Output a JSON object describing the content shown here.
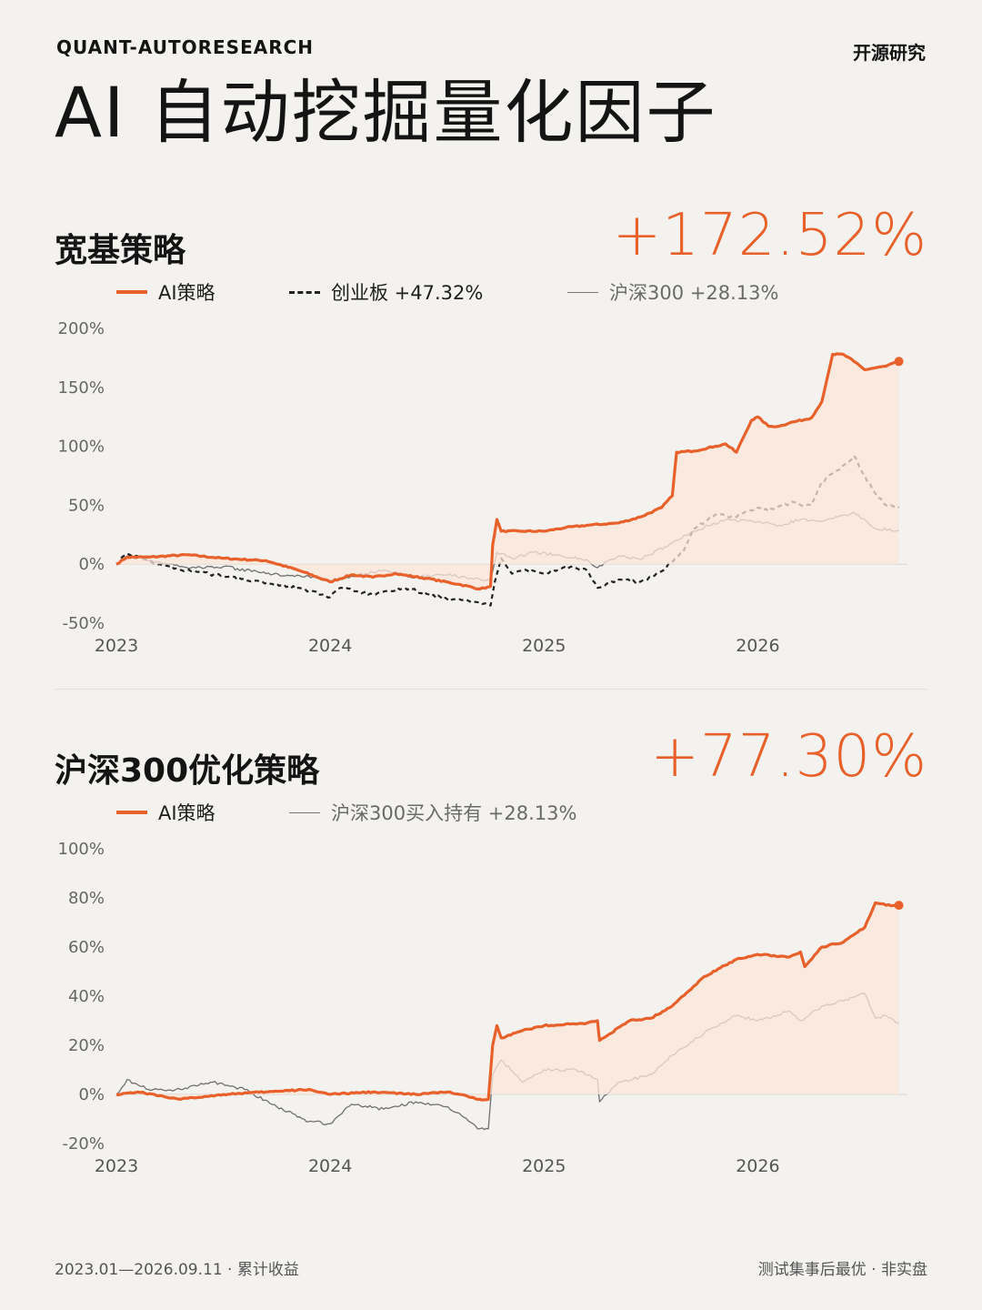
{
  "header": {
    "brand": "QUANT-AUTORESEARCH",
    "source": "开源研究",
    "title": "AI 自动挖掘量化因子"
  },
  "colors": {
    "ai": "#e8602a",
    "chinext": "#222222",
    "csi300": "#707070",
    "fill": "#fbe5da"
  },
  "sections": [
    {
      "title": "宽基策略",
      "return": "+172.52%",
      "legend": [
        {
          "label": "AI策略",
          "style": "orange"
        },
        {
          "label": "创业板 +47.32%",
          "style": "dash"
        },
        {
          "label": "沪深300 +28.13%",
          "style": "thin"
        }
      ]
    },
    {
      "title": "沪深300优化策略",
      "return": "+77.30%",
      "legend": [
        {
          "label": "AI策略",
          "style": "orange"
        },
        {
          "label": "沪深300买入持有 +28.13%",
          "style": "thin"
        }
      ]
    }
  ],
  "footer": {
    "left": "2023.01—2026.09.11 · 累计收益",
    "right": "测试集事后最优 · 非实盘"
  },
  "chart_data": [
    {
      "type": "line",
      "title": "宽基策略",
      "xlabel": "",
      "ylabel": "",
      "x_ticks": [
        "2023",
        "2024",
        "2025",
        "2026"
      ],
      "y_ticks": [
        "200%",
        "150%",
        "100%",
        "50%",
        "0%",
        "-50%"
      ],
      "ylim": [
        -50,
        200
      ],
      "xlim": [
        2023.0,
        2026.7
      ],
      "legend_position": "top",
      "end_marker": "AI策略",
      "series": [
        {
          "name": "AI策略",
          "style": "orange",
          "x": [
            2023.0,
            2023.05,
            2023.15,
            2023.33,
            2023.5,
            2023.7,
            2023.85,
            2024.0,
            2024.1,
            2024.2,
            2024.3,
            2024.45,
            2024.6,
            2024.7,
            2024.75,
            2024.76,
            2024.78,
            2024.8,
            2024.9,
            2025.0,
            2025.1,
            2025.2,
            2025.35,
            2025.45,
            2025.55,
            2025.6,
            2025.62,
            2025.7,
            2025.8,
            2025.85,
            2025.9,
            2025.97,
            2026.0,
            2026.05,
            2026.1,
            2026.15,
            2026.25,
            2026.3,
            2026.35,
            2026.4,
            2026.45,
            2026.5,
            2026.6,
            2026.66
          ],
          "values": [
            0,
            6,
            6,
            8,
            5,
            3,
            -5,
            -15,
            -9,
            -11,
            -8,
            -12,
            -17,
            -21,
            -19,
            16,
            38,
            28,
            28,
            28,
            31,
            33,
            35,
            40,
            48,
            58,
            95,
            96,
            100,
            102,
            95,
            122,
            125,
            117,
            117,
            120,
            124,
            138,
            178,
            178,
            172,
            165,
            168,
            172
          ]
        },
        {
          "name": "创业板",
          "style": "dash",
          "x": [
            2023.0,
            2023.05,
            2023.2,
            2023.35,
            2023.5,
            2023.65,
            2023.85,
            2024.0,
            2024.05,
            2024.2,
            2024.35,
            2024.55,
            2024.7,
            2024.75,
            2024.77,
            2024.8,
            2024.85,
            2024.9,
            2025.0,
            2025.1,
            2025.2,
            2025.25,
            2025.35,
            2025.45,
            2025.55,
            2025.65,
            2025.7,
            2025.8,
            2025.9,
            2026.0,
            2026.05,
            2026.15,
            2026.25,
            2026.3,
            2026.38,
            2026.45,
            2026.5,
            2026.55,
            2026.6,
            2026.66
          ],
          "values": [
            0,
            9,
            0,
            -6,
            -10,
            -14,
            -20,
            -28,
            -20,
            -26,
            -20,
            -30,
            -32,
            -35,
            -15,
            5,
            -8,
            -5,
            -8,
            -2,
            -5,
            -20,
            -13,
            -15,
            -6,
            10,
            30,
            42,
            40,
            48,
            45,
            52,
            50,
            70,
            80,
            92,
            75,
            60,
            50,
            48
          ]
        },
        {
          "name": "沪深300",
          "style": "thin",
          "x": [
            2023.0,
            2023.05,
            2023.15,
            2023.35,
            2023.5,
            2023.7,
            2023.9,
            2024.0,
            2024.1,
            2024.25,
            2024.4,
            2024.55,
            2024.7,
            2024.75,
            2024.78,
            2024.85,
            2024.95,
            2025.05,
            2025.2,
            2025.25,
            2025.35,
            2025.45,
            2025.6,
            2025.7,
            2025.85,
            2026.0,
            2026.1,
            2026.2,
            2026.3,
            2026.45,
            2026.55,
            2026.66
          ],
          "values": [
            0,
            7,
            3,
            -3,
            -2,
            -8,
            -10,
            -14,
            -10,
            -5,
            -11,
            -9,
            -13,
            -14,
            10,
            5,
            10,
            8,
            4,
            -3,
            7,
            4,
            18,
            28,
            38,
            36,
            33,
            38,
            36,
            44,
            30,
            29
          ]
        }
      ]
    },
    {
      "type": "line",
      "title": "沪深300优化策略",
      "xlabel": "",
      "ylabel": "",
      "x_ticks": [
        "2023",
        "2024",
        "2025",
        "2026"
      ],
      "y_ticks": [
        "100%",
        "80%",
        "60%",
        "40%",
        "20%",
        "0%",
        "-20%"
      ],
      "ylim": [
        -20,
        100
      ],
      "xlim": [
        2023.0,
        2026.7
      ],
      "legend_position": "top",
      "end_marker": "AI策略",
      "series": [
        {
          "name": "AI策略",
          "style": "orange",
          "x": [
            2023.0,
            2023.1,
            2023.3,
            2023.5,
            2023.7,
            2023.9,
            2024.0,
            2024.2,
            2024.4,
            2024.55,
            2024.7,
            2024.74,
            2024.76,
            2024.78,
            2024.8,
            2024.9,
            2025.0,
            2025.2,
            2025.25,
            2025.26,
            2025.4,
            2025.5,
            2025.6,
            2025.7,
            2025.75,
            2025.9,
            2026.0,
            2026.15,
            2026.2,
            2026.22,
            2026.3,
            2026.4,
            2026.5,
            2026.55,
            2026.6,
            2026.66
          ],
          "values": [
            0,
            1,
            -2,
            0,
            1,
            2,
            0,
            1,
            0,
            1,
            -2,
            -2,
            20,
            28,
            23,
            26,
            28,
            29,
            30,
            22,
            30,
            31,
            36,
            44,
            48,
            55,
            57,
            56,
            58,
            52,
            60,
            62,
            68,
            78,
            77,
            77
          ]
        },
        {
          "name": "沪深300买入持有",
          "style": "thin",
          "x": [
            2023.0,
            2023.05,
            2023.15,
            2023.3,
            2023.45,
            2023.6,
            2023.75,
            2023.9,
            2024.0,
            2024.1,
            2024.25,
            2024.4,
            2024.55,
            2024.7,
            2024.74,
            2024.76,
            2024.8,
            2024.9,
            2025.0,
            2025.15,
            2025.25,
            2025.26,
            2025.35,
            2025.5,
            2025.6,
            2025.75,
            2025.9,
            2026.0,
            2026.15,
            2026.2,
            2026.3,
            2026.4,
            2026.5,
            2026.55,
            2026.6,
            2026.66
          ],
          "values": [
            0,
            6,
            2,
            2,
            5,
            2,
            -5,
            -11,
            -12,
            -4,
            -6,
            -3,
            -5,
            -14,
            -14,
            8,
            14,
            5,
            10,
            10,
            6,
            -3,
            5,
            8,
            16,
            25,
            32,
            30,
            34,
            30,
            36,
            38,
            41,
            31,
            32,
            29
          ]
        }
      ]
    }
  ]
}
